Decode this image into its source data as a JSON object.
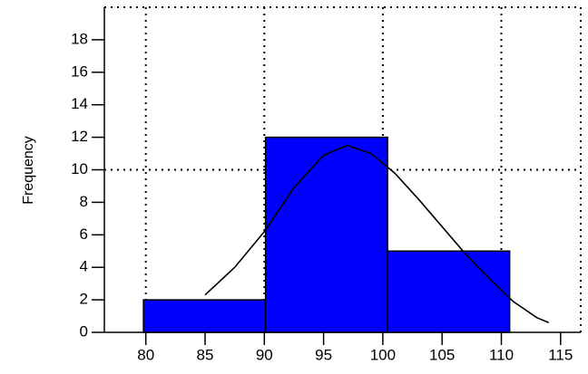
{
  "chart_data": {
    "type": "histogram",
    "ylabel": "Frequency",
    "bins": [
      79.8,
      90.1,
      100.4,
      110.7
    ],
    "values": [
      2,
      12,
      5
    ],
    "color": "#0000ff",
    "curve": {
      "color": "#000000",
      "x": [
        85,
        87.5,
        90,
        92.5,
        95,
        97,
        99,
        101,
        103,
        105,
        107,
        109,
        111,
        113,
        114
      ],
      "y": [
        2.3,
        4.0,
        6.2,
        8.9,
        10.9,
        11.5,
        11.0,
        9.8,
        8.2,
        6.5,
        4.8,
        3.3,
        1.9,
        0.9,
        0.6
      ]
    },
    "xlim": [
      76.5,
      116.7
    ],
    "ylim": [
      0,
      20
    ],
    "xticks": [
      80,
      85,
      90,
      95,
      100,
      105,
      110,
      115
    ],
    "yticks": [
      0,
      2,
      4,
      6,
      8,
      10,
      12,
      14,
      16,
      18
    ],
    "xgrid": [
      80,
      90,
      100,
      110
    ],
    "ygrid": [
      10,
      20
    ]
  }
}
